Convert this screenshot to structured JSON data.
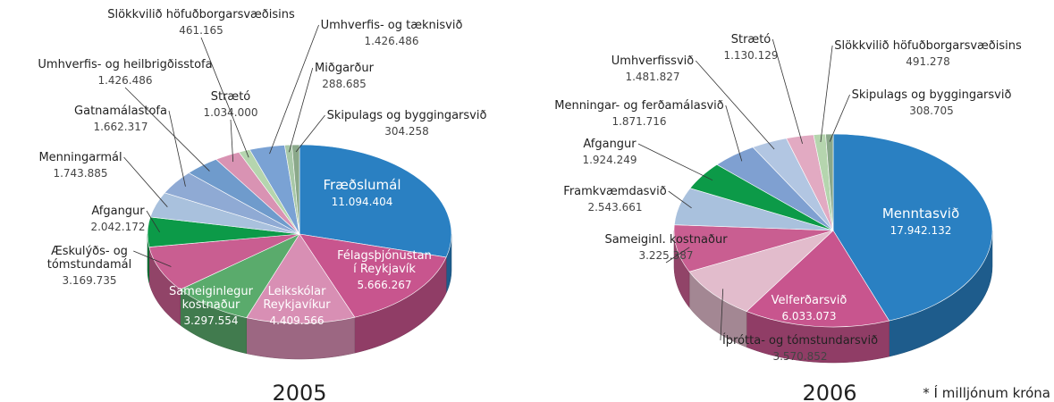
{
  "chart_data": [
    {
      "type": "pie",
      "title": "2005",
      "categories": [
        "Fræðslumál",
        "Félagsþjónustan\ní Reykjavík",
        "Leikskólar\nReykjavíkur",
        "Sameiginlegur\nkostnaður",
        "Æskulýðs- og\ntómstundamál",
        "Afgangur",
        "Menningarmál",
        "Gatnamálastofa",
        "Umhverfis- og heilbrigðisstofa",
        "Strætó",
        "Slökkvilið höfuðborgarsvæðisins",
        "Umhverfis- og tæknisvið",
        "Miðgarður",
        "Skipulags og byggingarsvið"
      ],
      "values": [
        11094404,
        5666267,
        4409566,
        3297554,
        3169735,
        2042172,
        1743885,
        1662317,
        1426486,
        1034000,
        461165,
        1426486,
        288685,
        304258
      ],
      "value_labels": [
        "11.094.404",
        "5.666.267",
        "4.409.566",
        "3.297.554",
        "3.169.735",
        "2.042.172",
        "1.743.885",
        "1.662.317",
        "1.426.486",
        "1.034.000",
        "461.165",
        "1.426.486",
        "288.685",
        "304.258"
      ],
      "colors": [
        "#2a80c2",
        "#c8558e",
        "#d88fb4",
        "#5aab6c",
        "#c95e91",
        "#0c9a48",
        "#a9c1dd",
        "#8faad4",
        "#6f9bcc",
        "#d993b3",
        "#b5d5ae",
        "#7aa2d4",
        "#a8c8a8",
        "#8aa88a"
      ]
    },
    {
      "type": "pie",
      "title": "2006",
      "categories": [
        "Menntasvið",
        "Velferðarsvið",
        "Íþrótta- og tómstundarsvið",
        "Sameiginl. kostnaður",
        "Framkvæmdasvið",
        "Afgangur",
        "Menningar- og ferðamálasvið",
        "Umhverfissvið",
        "Strætó",
        "Slökkvilið höfuðborgarsvæðisins",
        "Skipulags og byggingarsvið"
      ],
      "values": [
        17942132,
        6033073,
        3570852,
        3225387,
        2543661,
        1924249,
        1871716,
        1481827,
        1130129,
        491278,
        308705
      ],
      "value_labels": [
        "17.942.132",
        "6.033.073",
        "3.570.852",
        "3.225.387",
        "2.543.661",
        "1.924.249",
        "1.871.716",
        "1.481.827",
        "1.130.129",
        "491.278",
        "308.705"
      ],
      "colors": [
        "#2a80c2",
        "#c8558e",
        "#e2bccc",
        "#c95e91",
        "#a9c1dd",
        "#0c9a48",
        "#7fa0d1",
        "#b2c6e2",
        "#e2aac2",
        "#b5d5ae",
        "#8aa88a"
      ]
    }
  ],
  "note": "* Í milljónum króna"
}
